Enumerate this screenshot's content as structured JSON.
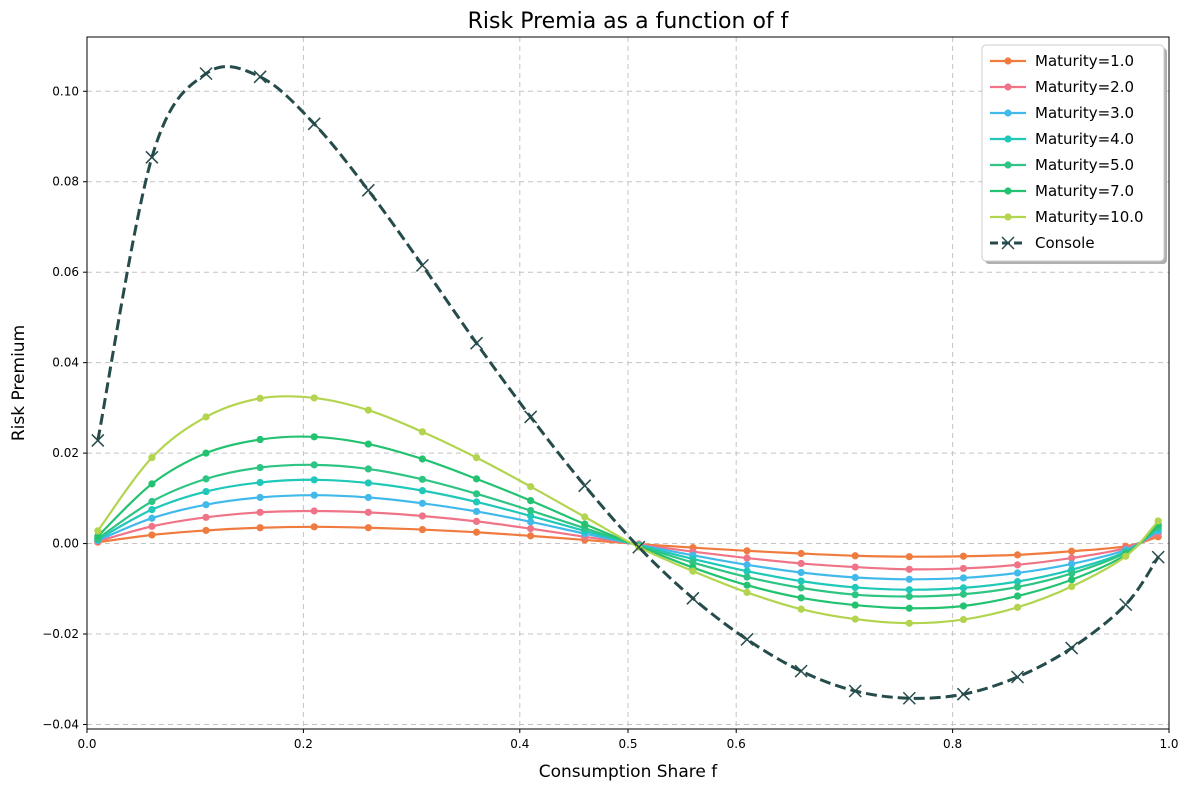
{
  "chart_data": {
    "type": "line",
    "title": "Risk Premia as a function of f",
    "xlabel": "Consumption Share f",
    "ylabel": "Risk Premium",
    "xlim": [
      0,
      1
    ],
    "ylim": [
      -0.041,
      0.112
    ],
    "grid": true,
    "legend_position": "top-right",
    "x_ticks": [
      {
        "value": 0.0,
        "label": "0.0"
      },
      {
        "value": 0.2,
        "label": "0.2"
      },
      {
        "value": 0.4,
        "label": "0.4"
      },
      {
        "value": 0.5,
        "label": "0.5"
      },
      {
        "value": 0.6,
        "label": "0.6"
      },
      {
        "value": 0.8,
        "label": "0.8"
      },
      {
        "value": 1.0,
        "label": "1.0"
      }
    ],
    "y_ticks": [
      {
        "value": -0.04,
        "label": "−0.04"
      },
      {
        "value": -0.02,
        "label": "−0.02"
      },
      {
        "value": 0.0,
        "label": "0.00"
      },
      {
        "value": 0.02,
        "label": "0.02"
      },
      {
        "value": 0.04,
        "label": "0.04"
      },
      {
        "value": 0.06,
        "label": "0.06"
      },
      {
        "value": 0.08,
        "label": "0.08"
      },
      {
        "value": 0.1,
        "label": "0.10"
      }
    ],
    "x": [
      0.01,
      0.06,
      0.11,
      0.16,
      0.21,
      0.26,
      0.31,
      0.36,
      0.41,
      0.46,
      0.51,
      0.56,
      0.61,
      0.66,
      0.71,
      0.76,
      0.81,
      0.86,
      0.91,
      0.96,
      0.99
    ],
    "series": [
      {
        "name": "Maturity=1.0",
        "color": "#f07b3f",
        "marker": "circle",
        "dash": "solid",
        "values": [
          0.0003,
          0.0019,
          0.0029,
          0.0035,
          0.0037,
          0.0035,
          0.0031,
          0.0025,
          0.0017,
          0.0008,
          -0.0001,
          -0.0009,
          -0.0016,
          -0.0022,
          -0.0027,
          -0.0029,
          -0.0028,
          -0.0025,
          -0.0017,
          -0.0006,
          0.0015
        ]
      },
      {
        "name": "Maturity=2.0",
        "color": "#f07488",
        "marker": "circle",
        "dash": "solid",
        "values": [
          0.0005,
          0.0038,
          0.0058,
          0.0069,
          0.0072,
          0.0069,
          0.0061,
          0.0049,
          0.0033,
          0.0015,
          -0.0002,
          -0.0018,
          -0.0032,
          -0.0044,
          -0.0052,
          -0.0057,
          -0.0055,
          -0.0047,
          -0.0032,
          -0.001,
          0.0022
        ]
      },
      {
        "name": "Maturity=3.0",
        "color": "#42b9eb",
        "marker": "circle",
        "dash": "solid",
        "values": [
          0.0007,
          0.0056,
          0.0086,
          0.0102,
          0.0107,
          0.0102,
          0.0089,
          0.0071,
          0.0048,
          0.0022,
          -0.0003,
          -0.0026,
          -0.0047,
          -0.0064,
          -0.0075,
          -0.0079,
          -0.0076,
          -0.0065,
          -0.0045,
          -0.0014,
          0.0028
        ]
      },
      {
        "name": "Maturity=4.0",
        "color": "#1fc8b8",
        "marker": "circle",
        "dash": "solid",
        "values": [
          0.0009,
          0.0075,
          0.0115,
          0.0135,
          0.0141,
          0.0134,
          0.0117,
          0.0092,
          0.0061,
          0.0028,
          -0.0004,
          -0.0034,
          -0.0061,
          -0.0083,
          -0.0097,
          -0.0102,
          -0.0098,
          -0.0084,
          -0.0058,
          -0.0018,
          0.0033
        ]
      },
      {
        "name": "Maturity=5.0",
        "color": "#2ec483",
        "marker": "circle",
        "dash": "solid",
        "values": [
          0.0011,
          0.0093,
          0.0143,
          0.0168,
          0.0174,
          0.0165,
          0.0142,
          0.011,
          0.0073,
          0.0034,
          -0.0005,
          -0.0042,
          -0.0074,
          -0.0098,
          -0.0113,
          -0.0117,
          -0.0112,
          -0.0096,
          -0.0066,
          -0.002,
          0.0037
        ]
      },
      {
        "name": "Maturity=7.0",
        "color": "#22c270",
        "marker": "circle",
        "dash": "solid",
        "values": [
          0.0016,
          0.0132,
          0.02,
          0.023,
          0.0236,
          0.022,
          0.0187,
          0.0143,
          0.0095,
          0.0043,
          -0.0006,
          -0.0053,
          -0.0092,
          -0.012,
          -0.0136,
          -0.0143,
          -0.0138,
          -0.0116,
          -0.008,
          -0.0025,
          0.0042
        ]
      },
      {
        "name": "Maturity=10.0",
        "color": "#b2d44e",
        "marker": "circle",
        "dash": "solid",
        "values": [
          0.0028,
          0.019,
          0.028,
          0.0321,
          0.0322,
          0.0295,
          0.0247,
          0.019,
          0.0126,
          0.0059,
          -0.0008,
          -0.0061,
          -0.0108,
          -0.0145,
          -0.0167,
          -0.0176,
          -0.0168,
          -0.0141,
          -0.0095,
          -0.0028,
          0.005
        ]
      },
      {
        "name": "Console",
        "color": "#264b4b",
        "marker": "x",
        "dash": "dashed",
        "values": [
          0.0228,
          0.0854,
          0.1039,
          0.1032,
          0.0928,
          0.0781,
          0.0615,
          0.0443,
          0.028,
          0.0128,
          -0.0008,
          -0.0121,
          -0.0212,
          -0.0282,
          -0.0326,
          -0.0342,
          -0.0333,
          -0.0295,
          -0.0231,
          -0.0135,
          -0.003
        ]
      }
    ]
  }
}
